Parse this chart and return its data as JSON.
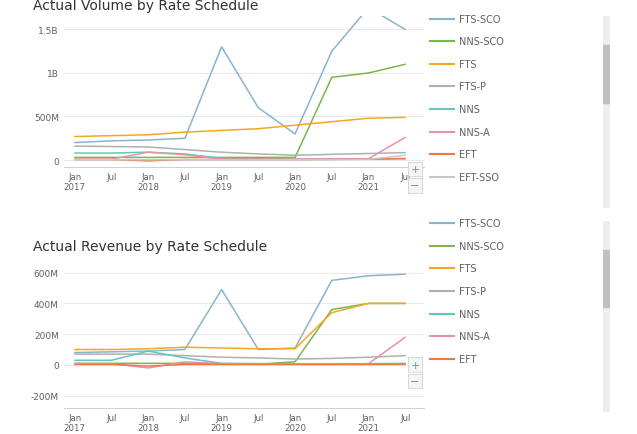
{
  "title1": "Actual Volume by Rate Schedule",
  "title2": "Actual Revenue by Rate Schedule",
  "x_positions": [
    0,
    1,
    2,
    3,
    4,
    5,
    6,
    7,
    8,
    9
  ],
  "x_tick_labels": [
    "Jan\n2017",
    "Jul",
    "Jan\n2018",
    "Jul",
    "Jan\n2019",
    "Jul",
    "Jan\n2020",
    "Jul",
    "Jan\n2021",
    "Jul"
  ],
  "colors": {
    "FTS-SCO": "#8ab4cc",
    "NNS-SCO": "#7ab648",
    "FTS": "#f5a623",
    "FTS-P": "#b0b0b0",
    "NNS": "#60c8c0",
    "NNS-A": "#e890b0",
    "EFT": "#f07840",
    "EFT-SSO": "#c8c8c8"
  },
  "vol_data": {
    "FTS-SCO": [
      200,
      220,
      230,
      250,
      1300,
      600,
      300,
      1250,
      1750,
      1500
    ],
    "NNS-SCO": [
      30,
      30,
      30,
      30,
      30,
      30,
      30,
      950,
      1000,
      1100
    ],
    "FTS": [
      270,
      280,
      290,
      320,
      340,
      360,
      400,
      440,
      480,
      490
    ],
    "FTS-P": [
      160,
      155,
      150,
      120,
      90,
      70,
      55,
      65,
      75,
      85
    ],
    "NNS": [
      80,
      80,
      90,
      70,
      20,
      15,
      10,
      10,
      12,
      18
    ],
    "NNS-A": [
      10,
      10,
      90,
      60,
      10,
      10,
      8,
      10,
      15,
      260
    ],
    "EFT": [
      5,
      5,
      -10,
      5,
      5,
      5,
      5,
      8,
      10,
      15
    ],
    "EFT-SSO": [
      3,
      3,
      3,
      3,
      3,
      3,
      3,
      5,
      8,
      55
    ]
  },
  "rev_data": {
    "FTS-SCO": [
      80,
      85,
      90,
      100,
      490,
      100,
      110,
      550,
      580,
      590
    ],
    "NNS-SCO": [
      10,
      10,
      10,
      10,
      5,
      5,
      20,
      360,
      400,
      400
    ],
    "FTS": [
      100,
      100,
      105,
      115,
      110,
      105,
      105,
      340,
      400,
      400
    ],
    "FTS-P": [
      70,
      70,
      70,
      60,
      50,
      45,
      38,
      42,
      50,
      60
    ],
    "NNS": [
      30,
      30,
      90,
      45,
      10,
      8,
      5,
      5,
      8,
      10
    ],
    "NNS-A": [
      8,
      8,
      -20,
      20,
      8,
      8,
      5,
      5,
      8,
      180
    ],
    "EFT": [
      3,
      3,
      -8,
      3,
      3,
      3,
      3,
      3,
      3,
      3
    ]
  },
  "legend1": [
    "FTS-SCO",
    "NNS-SCO",
    "FTS",
    "FTS-P",
    "NNS",
    "NNS-A",
    "EFT",
    "EFT-SSO"
  ],
  "legend2": [
    "FTS-SCO",
    "NNS-SCO",
    "FTS",
    "FTS-P",
    "NNS",
    "NNS-A",
    "EFT"
  ],
  "vol_yticks": [
    0,
    500,
    1000,
    1500
  ],
  "vol_ylim": [
    -80,
    1650
  ],
  "rev_yticks": [
    -200,
    0,
    200,
    400,
    600
  ],
  "rev_ylim": [
    -280,
    700
  ],
  "bg_color": "#ffffff",
  "grid_color": "#e8e8e8",
  "spine_color": "#d0d0d0",
  "font_color": "#606060",
  "title_color": "#333333"
}
